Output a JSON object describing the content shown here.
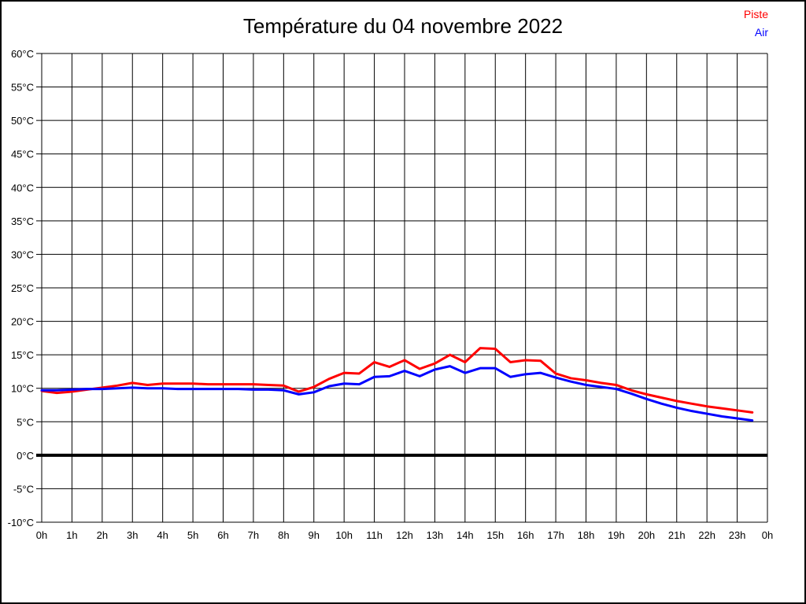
{
  "window": {
    "background": "#ffffff",
    "border_color": "#000000"
  },
  "chart_data": {
    "type": "line",
    "title": "Température du 04 novembre 2022",
    "xlabel": "",
    "ylabel": "",
    "xlim": [
      0,
      24
    ],
    "ylim": [
      -10,
      60
    ],
    "grid": "on",
    "grid_color": "#000000",
    "legend_position": "top-right",
    "zero_line": {
      "value": 0,
      "width": 4,
      "color": "#000000"
    },
    "x_tick_labels": [
      "0h",
      "1h",
      "2h",
      "3h",
      "4h",
      "5h",
      "6h",
      "7h",
      "8h",
      "9h",
      "10h",
      "11h",
      "12h",
      "13h",
      "14h",
      "15h",
      "16h",
      "17h",
      "18h",
      "19h",
      "20h",
      "21h",
      "22h",
      "23h",
      "0h"
    ],
    "y_ticks": {
      "values": [
        60,
        55,
        50,
        45,
        40,
        35,
        30,
        25,
        20,
        15,
        10,
        5,
        0,
        -5,
        -10
      ],
      "labels": [
        "60°C",
        "55°C",
        "50°C",
        "45°C",
        "40°C",
        "35°C",
        "30°C",
        "25°C",
        "20°C",
        "15°C",
        "10°C",
        "5°C",
        "0°C",
        "-5°C",
        "-10°C"
      ]
    },
    "x": [
      0,
      0.5,
      1,
      1.5,
      2,
      2.5,
      3,
      3.5,
      4,
      4.5,
      5,
      5.5,
      6,
      6.5,
      7,
      7.5,
      8,
      8.5,
      9,
      9.5,
      10,
      10.5,
      11,
      11.5,
      12,
      12.5,
      13,
      13.5,
      14,
      14.5,
      15,
      15.5,
      16,
      16.5,
      17,
      17.5,
      18,
      18.5,
      19,
      19.5,
      20,
      20.5,
      21,
      21.5,
      22,
      22.5,
      23,
      23.5
    ],
    "series": [
      {
        "name": "Piste",
        "color": "#ff0000",
        "values": [
          9.6,
          9.3,
          9.5,
          9.8,
          10.1,
          10.4,
          10.8,
          10.5,
          10.7,
          10.7,
          10.7,
          10.6,
          10.6,
          10.6,
          10.6,
          10.5,
          10.4,
          9.5,
          10.2,
          11.4,
          12.3,
          12.2,
          13.9,
          13.2,
          14.2,
          12.9,
          13.7,
          15.0,
          13.9,
          16.0,
          15.9,
          13.9,
          14.2,
          14.1,
          12.2,
          11.5,
          11.2,
          10.8,
          10.5,
          9.7,
          9.1,
          8.6,
          8.1,
          7.7,
          7.3,
          7.0,
          6.7,
          6.4
        ]
      },
      {
        "name": "Air",
        "color": "#0000ff",
        "values": [
          9.7,
          9.7,
          9.8,
          9.9,
          9.9,
          10.0,
          10.1,
          10.0,
          10.0,
          9.9,
          9.9,
          9.9,
          9.9,
          9.9,
          9.8,
          9.8,
          9.7,
          9.1,
          9.4,
          10.3,
          10.7,
          10.6,
          11.7,
          11.8,
          12.6,
          11.8,
          12.8,
          13.3,
          12.3,
          13.0,
          13.0,
          11.7,
          12.1,
          12.3,
          11.6,
          11.0,
          10.5,
          10.2,
          9.9,
          9.2,
          8.4,
          7.7,
          7.1,
          6.6,
          6.2,
          5.8,
          5.5,
          5.2
        ]
      }
    ]
  }
}
